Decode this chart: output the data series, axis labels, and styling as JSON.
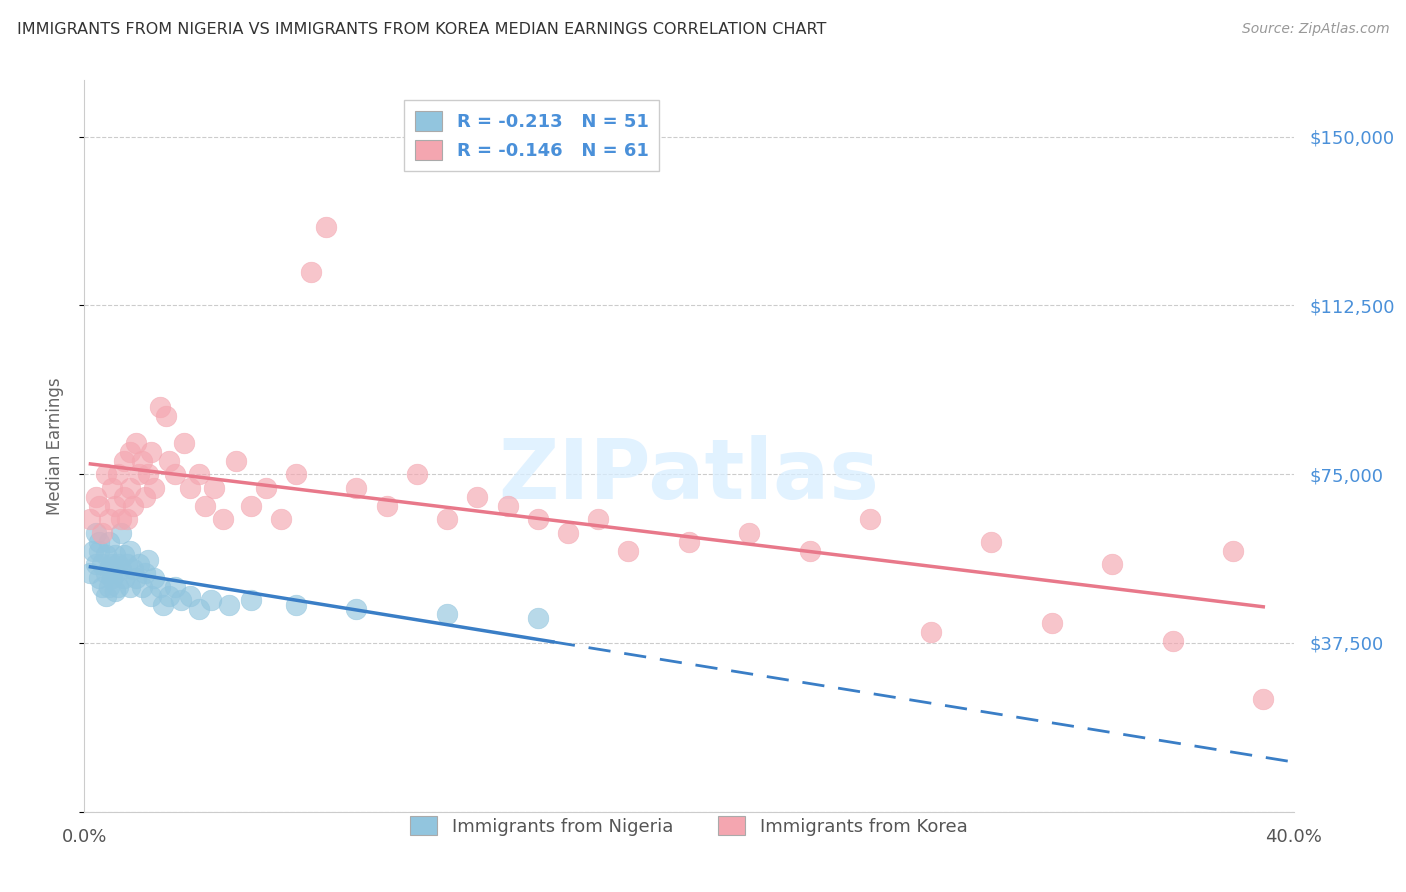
{
  "title": "IMMIGRANTS FROM NIGERIA VS IMMIGRANTS FROM KOREA MEDIAN EARNINGS CORRELATION CHART",
  "source": "Source: ZipAtlas.com",
  "ylabel": "Median Earnings",
  "legend_bottom": [
    "Immigrants from Nigeria",
    "Immigrants from Korea"
  ],
  "nigeria_R": -0.213,
  "nigeria_N": 51,
  "korea_R": -0.146,
  "korea_N": 61,
  "xlim": [
    0.0,
    0.4
  ],
  "ylim": [
    0,
    162500
  ],
  "yticks": [
    0,
    37500,
    75000,
    112500,
    150000
  ],
  "ytick_labels_right": [
    "",
    "$37,500",
    "$75,000",
    "$112,500",
    "$150,000"
  ],
  "xticks": [
    0.0,
    0.08,
    0.16,
    0.24,
    0.32,
    0.4
  ],
  "xtick_labels": [
    "0.0%",
    "",
    "",
    "",
    "",
    "40.0%"
  ],
  "watermark": "ZIPatlas",
  "nigeria_color": "#92C5DE",
  "korea_color": "#F4A6B0",
  "nigeria_line_color": "#3A7EC6",
  "korea_line_color": "#E8788A",
  "nigeria_scatter_x": [
    0.002,
    0.003,
    0.004,
    0.004,
    0.005,
    0.005,
    0.005,
    0.006,
    0.006,
    0.007,
    0.007,
    0.007,
    0.008,
    0.008,
    0.008,
    0.009,
    0.009,
    0.01,
    0.01,
    0.01,
    0.011,
    0.011,
    0.012,
    0.012,
    0.013,
    0.013,
    0.014,
    0.015,
    0.015,
    0.016,
    0.017,
    0.018,
    0.019,
    0.02,
    0.021,
    0.022,
    0.023,
    0.025,
    0.026,
    0.028,
    0.03,
    0.032,
    0.035,
    0.038,
    0.042,
    0.048,
    0.055,
    0.07,
    0.09,
    0.12,
    0.15
  ],
  "nigeria_scatter_y": [
    53000,
    58000,
    55000,
    62000,
    58000,
    52000,
    60000,
    55000,
    50000,
    57000,
    53000,
    48000,
    60000,
    54000,
    50000,
    55000,
    52000,
    57000,
    53000,
    49000,
    55000,
    50000,
    62000,
    54000,
    57000,
    52000,
    55000,
    58000,
    50000,
    54000,
    52000,
    55000,
    50000,
    53000,
    56000,
    48000,
    52000,
    50000,
    46000,
    48000,
    50000,
    47000,
    48000,
    45000,
    47000,
    46000,
    47000,
    46000,
    45000,
    44000,
    43000
  ],
  "korea_scatter_x": [
    0.002,
    0.004,
    0.005,
    0.006,
    0.007,
    0.008,
    0.009,
    0.01,
    0.011,
    0.012,
    0.013,
    0.013,
    0.014,
    0.015,
    0.015,
    0.016,
    0.017,
    0.018,
    0.019,
    0.02,
    0.021,
    0.022,
    0.023,
    0.025,
    0.027,
    0.028,
    0.03,
    0.033,
    0.035,
    0.038,
    0.04,
    0.043,
    0.046,
    0.05,
    0.055,
    0.06,
    0.065,
    0.07,
    0.075,
    0.08,
    0.09,
    0.1,
    0.11,
    0.12,
    0.13,
    0.14,
    0.15,
    0.16,
    0.17,
    0.18,
    0.2,
    0.22,
    0.24,
    0.26,
    0.28,
    0.3,
    0.32,
    0.34,
    0.36,
    0.38,
    0.39
  ],
  "korea_scatter_y": [
    65000,
    70000,
    68000,
    62000,
    75000,
    65000,
    72000,
    68000,
    75000,
    65000,
    78000,
    70000,
    65000,
    80000,
    72000,
    68000,
    82000,
    75000,
    78000,
    70000,
    75000,
    80000,
    72000,
    90000,
    88000,
    78000,
    75000,
    82000,
    72000,
    75000,
    68000,
    72000,
    65000,
    78000,
    68000,
    72000,
    65000,
    75000,
    120000,
    130000,
    72000,
    68000,
    75000,
    65000,
    70000,
    68000,
    65000,
    62000,
    65000,
    58000,
    60000,
    62000,
    58000,
    65000,
    40000,
    60000,
    42000,
    55000,
    38000,
    58000,
    25000
  ]
}
